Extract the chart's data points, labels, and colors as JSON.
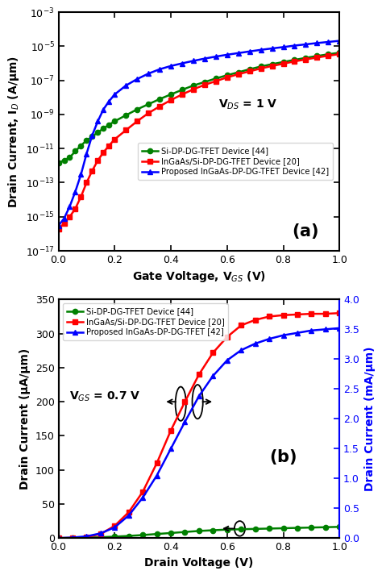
{
  "subplot_a": {
    "xlabel": "Gate Voltage, V$_{GS}$ (V)",
    "ylabel": "Drain Current, I$_D$ (A/μm)",
    "xlim": [
      0.0,
      1.0
    ],
    "ylim_log_min": -17,
    "ylim_log_max": -3,
    "annotation": "V$_{DS}$ = 1 V",
    "label_a": "(a)",
    "green_label": "Si-DP-DG-TFET Device [44]",
    "red_label": "InGaAs/Si-DP-DG-TFET Device [20]",
    "blue_label": "Proposed InGaAs-DP-DG-TFET Device [42]",
    "green_x": [
      0.0,
      0.02,
      0.04,
      0.06,
      0.08,
      0.1,
      0.12,
      0.14,
      0.16,
      0.18,
      0.2,
      0.24,
      0.28,
      0.32,
      0.36,
      0.4,
      0.44,
      0.48,
      0.52,
      0.56,
      0.6,
      0.64,
      0.68,
      0.72,
      0.76,
      0.8,
      0.84,
      0.88,
      0.92,
      0.96,
      1.0
    ],
    "green_y": [
      1.5e-12,
      2e-12,
      3e-12,
      7e-12,
      1.5e-11,
      3e-11,
      5e-11,
      9e-11,
      1.5e-10,
      2.5e-10,
      4e-10,
      9e-10,
      2e-09,
      4e-09,
      8e-09,
      1.5e-08,
      2.8e-08,
      5e-08,
      8e-08,
      1.3e-07,
      2e-07,
      3e-07,
      4.5e-07,
      6.5e-07,
      9e-07,
      1.2e-06,
      1.6e-06,
      2.1e-06,
      2.7e-06,
      3.4e-06,
      4.2e-06
    ],
    "red_x": [
      0.0,
      0.02,
      0.04,
      0.06,
      0.08,
      0.1,
      0.12,
      0.14,
      0.16,
      0.18,
      0.2,
      0.24,
      0.28,
      0.32,
      0.36,
      0.4,
      0.44,
      0.48,
      0.52,
      0.56,
      0.6,
      0.64,
      0.68,
      0.72,
      0.76,
      0.8,
      0.84,
      0.88,
      0.92,
      0.96,
      1.0
    ],
    "red_y": [
      2e-16,
      4e-16,
      1e-15,
      3e-15,
      1.5e-14,
      1e-13,
      5e-13,
      2e-12,
      6e-12,
      1.5e-11,
      3.5e-11,
      1.2e-10,
      4e-10,
      1.2e-09,
      3e-09,
      7e-09,
      1.5e-08,
      3e-08,
      5.5e-08,
      9e-08,
      1.5e-07,
      2.3e-07,
      3.4e-07,
      5e-07,
      7e-07,
      9.5e-07,
      1.3e-06,
      1.7e-06,
      2.2e-06,
      2.8e-06,
      3.5e-06
    ],
    "blue_x": [
      0.0,
      0.02,
      0.04,
      0.06,
      0.08,
      0.1,
      0.12,
      0.14,
      0.16,
      0.18,
      0.2,
      0.24,
      0.28,
      0.32,
      0.36,
      0.4,
      0.44,
      0.48,
      0.52,
      0.56,
      0.6,
      0.64,
      0.68,
      0.72,
      0.76,
      0.8,
      0.84,
      0.88,
      0.92,
      0.96,
      1.0
    ],
    "blue_y": [
      3e-16,
      8e-16,
      4e-15,
      3e-14,
      3e-13,
      5e-12,
      6e-11,
      4e-10,
      2e-09,
      6e-09,
      1.5e-08,
      5e-08,
      1.2e-07,
      2.5e-07,
      4.5e-07,
      7e-07,
      1e-06,
      1.4e-06,
      1.9e-06,
      2.5e-06,
      3.2e-06,
      4e-06,
      5e-06,
      6.2e-06,
      7.5e-06,
      9e-06,
      1.1e-05,
      1.3e-05,
      1.55e-05,
      1.8e-05,
      2.1e-05
    ]
  },
  "subplot_b": {
    "xlabel": "Drain Voltage (V)",
    "ylabel_left": "Drain Current (μA/μm)",
    "ylabel_right": "Drain Current (mA/μm)",
    "xlim": [
      0.0,
      1.0
    ],
    "ylim_left": [
      0,
      350
    ],
    "ylim_right": [
      0.0,
      4.0
    ],
    "annotation": "V$_{GS}$ = 0.7 V",
    "label_b": "(b)",
    "green_label": "Si-DP-DG-TFET Device [44]",
    "red_label": "InGaAs/Si-DP-DG-TFET Device [20]",
    "blue_label": "Proposed InGaAs-DP-DG-TFET [42]",
    "green_x": [
      0.0,
      0.05,
      0.1,
      0.15,
      0.2,
      0.25,
      0.3,
      0.35,
      0.4,
      0.45,
      0.5,
      0.55,
      0.6,
      0.65,
      0.7,
      0.75,
      0.8,
      0.85,
      0.9,
      0.95,
      1.0
    ],
    "green_y": [
      0,
      0.2,
      0.6,
      1.2,
      2.2,
      3.2,
      4.5,
      6.0,
      7.5,
      9.0,
      10.5,
      11.5,
      12.5,
      13.0,
      13.5,
      14.0,
      14.5,
      15.0,
      15.5,
      16.0,
      16.5
    ],
    "red_x": [
      0.0,
      0.05,
      0.1,
      0.15,
      0.2,
      0.25,
      0.3,
      0.35,
      0.4,
      0.45,
      0.5,
      0.55,
      0.6,
      0.65,
      0.7,
      0.75,
      0.8,
      0.85,
      0.9,
      0.95,
      1.0
    ],
    "red_y": [
      0,
      0.3,
      1.5,
      6,
      18,
      38,
      68,
      110,
      158,
      200,
      240,
      272,
      295,
      312,
      320,
      325,
      327,
      328,
      329,
      329,
      330
    ],
    "blue_x": [
      0.0,
      0.05,
      0.1,
      0.15,
      0.2,
      0.25,
      0.3,
      0.35,
      0.4,
      0.45,
      0.5,
      0.55,
      0.6,
      0.65,
      0.7,
      0.75,
      0.8,
      0.85,
      0.9,
      0.95,
      1.0
    ],
    "blue_y_ma": [
      0,
      0.01,
      0.03,
      0.08,
      0.18,
      0.38,
      0.68,
      1.05,
      1.5,
      1.95,
      2.38,
      2.72,
      2.98,
      3.15,
      3.26,
      3.34,
      3.4,
      3.44,
      3.48,
      3.5,
      3.52
    ]
  },
  "colors": {
    "green": "#008000",
    "red": "#FF0000",
    "blue": "#0000FF",
    "background": "#ffffff"
  }
}
